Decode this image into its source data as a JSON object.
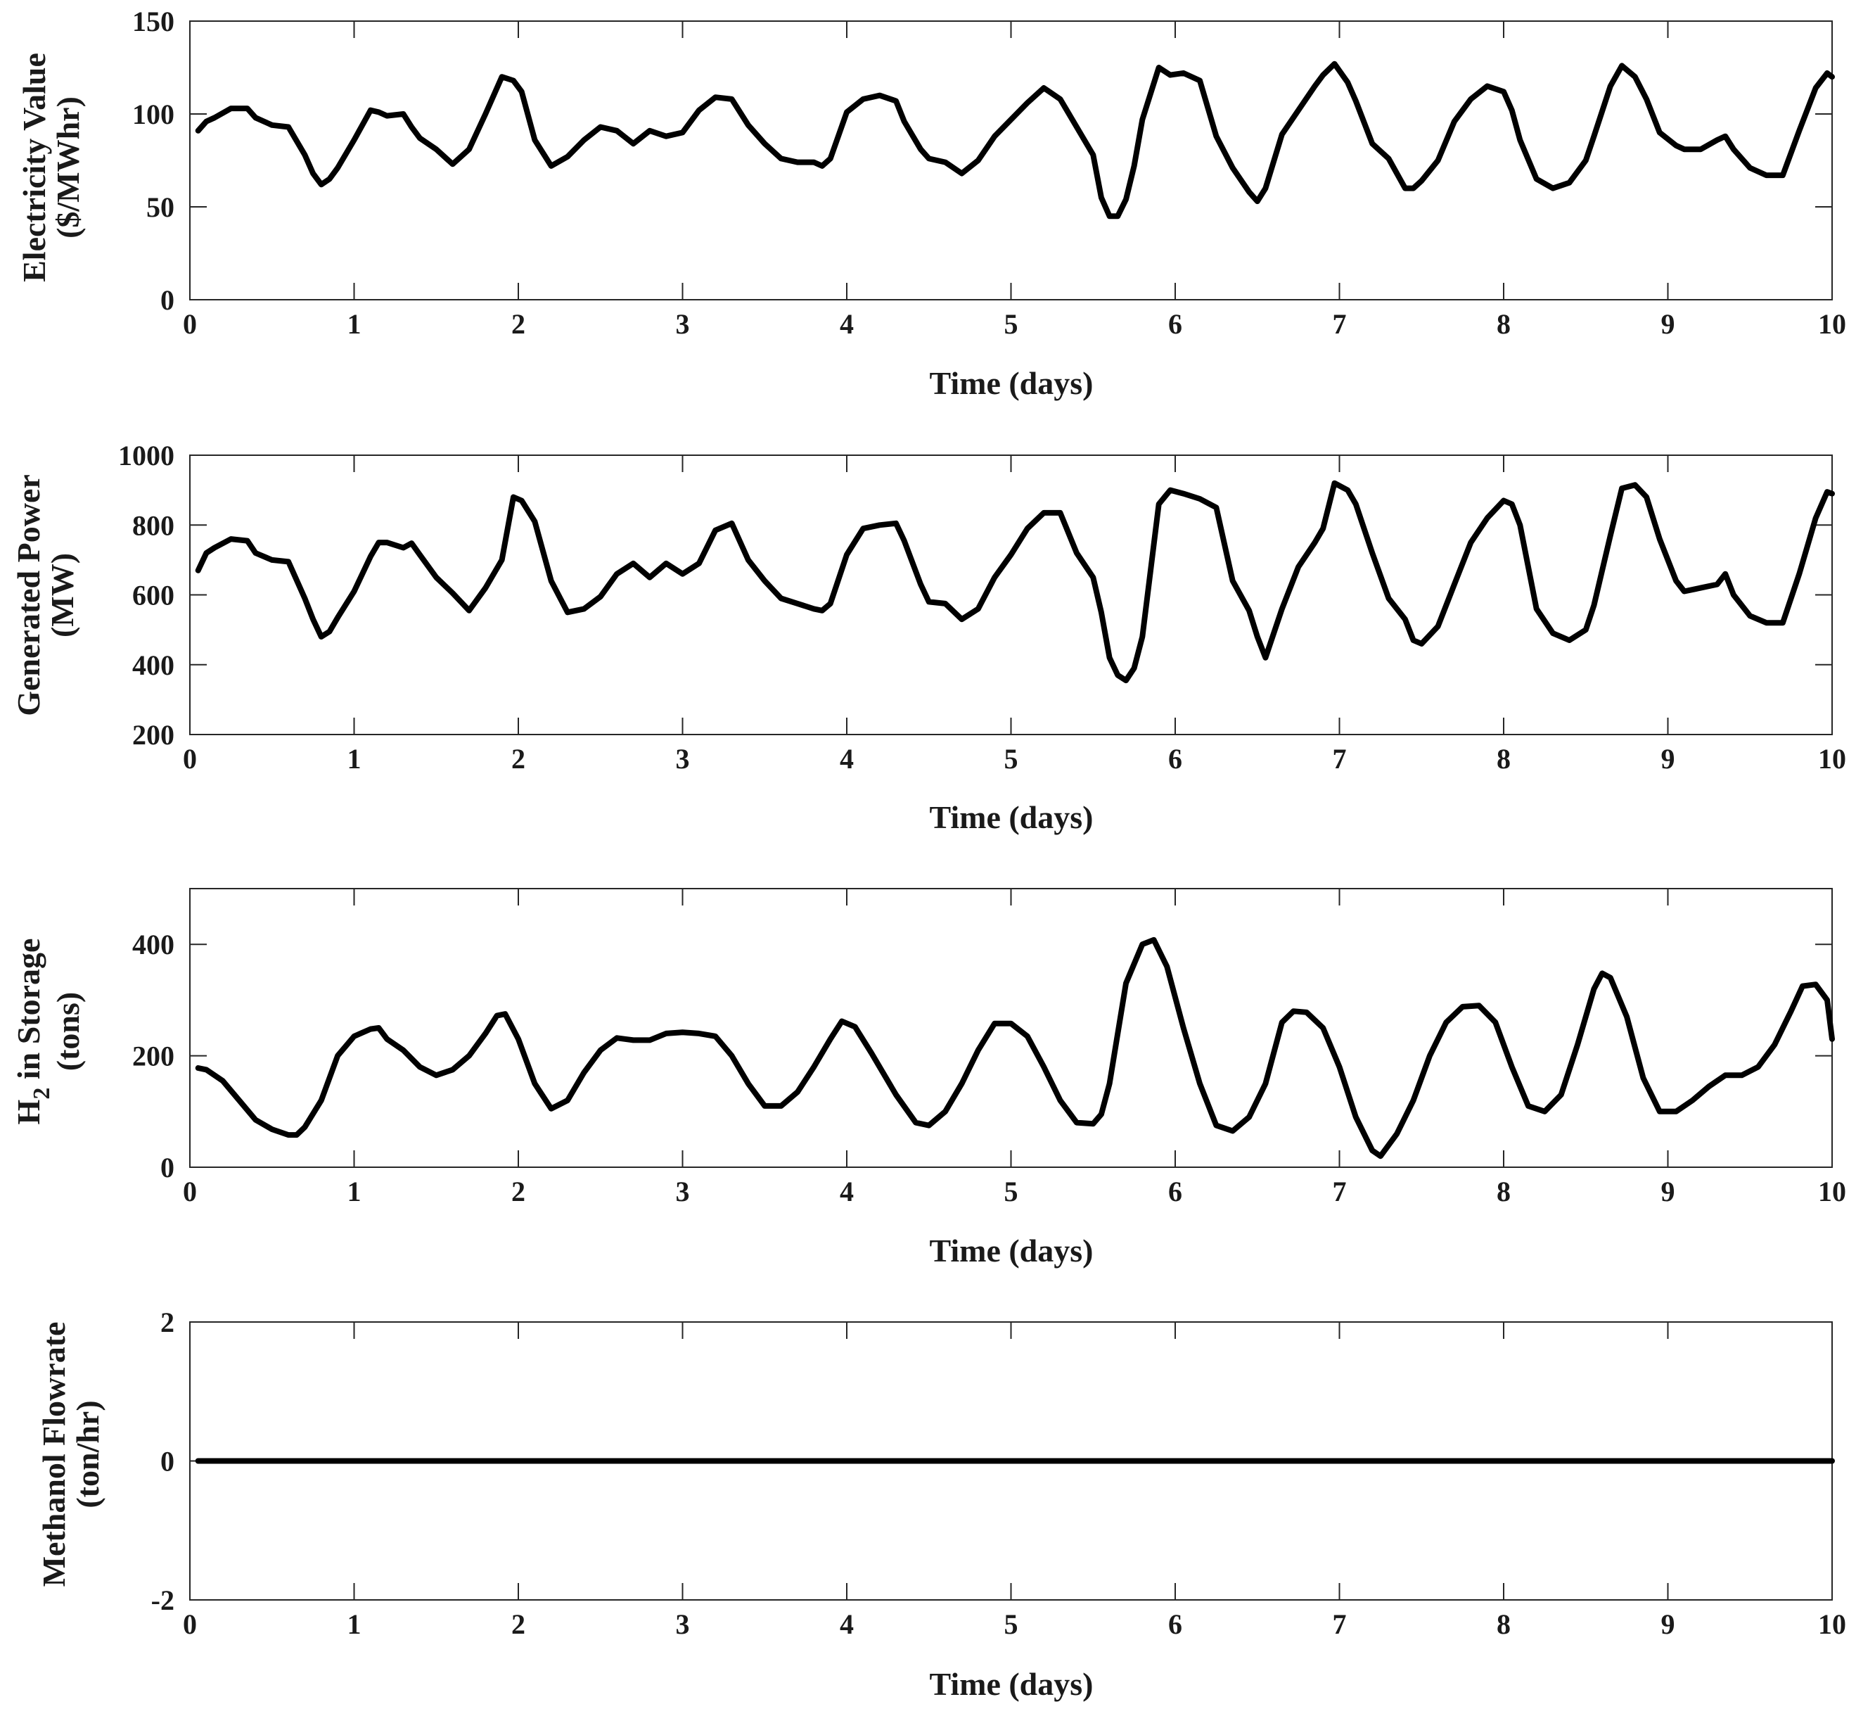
{
  "chart_data": [
    {
      "type": "line",
      "xlabel": "Time (days)",
      "ylabel_lines": [
        "Electricity Value",
        "($/MWhr)"
      ],
      "xlim": [
        0,
        10
      ],
      "ylim": [
        0,
        150
      ],
      "xticks": [
        "0",
        "1",
        "2",
        "3",
        "4",
        "5",
        "6",
        "7",
        "8",
        "9",
        "10"
      ],
      "yticks": [
        "0",
        "50",
        "100",
        "150"
      ],
      "grid": false,
      "series": [
        {
          "color": "#000000",
          "x": [
            0.05,
            0.1,
            0.15,
            0.25,
            0.35,
            0.4,
            0.5,
            0.6,
            0.7,
            0.75,
            0.8,
            0.85,
            0.9,
            1.0,
            1.1,
            1.15,
            1.2,
            1.3,
            1.35,
            1.4,
            1.5,
            1.6,
            1.7,
            1.8,
            1.9,
            1.97,
            2.02,
            2.1,
            2.2,
            2.3,
            2.4,
            2.5,
            2.6,
            2.7,
            2.8,
            2.9,
            3.0,
            3.1,
            3.2,
            3.3,
            3.4,
            3.5,
            3.6,
            3.7,
            3.8,
            3.85,
            3.9,
            4.0,
            4.1,
            4.2,
            4.3,
            4.35,
            4.45,
            4.5,
            4.6,
            4.7,
            4.8,
            4.9,
            5.0,
            5.1,
            5.2,
            5.3,
            5.4,
            5.5,
            5.55,
            5.6,
            5.65,
            5.7,
            5.75,
            5.8,
            5.9,
            5.97,
            6.05,
            6.15,
            6.25,
            6.35,
            6.45,
            6.5,
            6.55,
            6.65,
            6.75,
            6.85,
            6.9,
            6.97,
            7.05,
            7.1,
            7.2,
            7.3,
            7.4,
            7.45,
            7.5,
            7.6,
            7.7,
            7.8,
            7.9,
            8.0,
            8.05,
            8.1,
            8.2,
            8.3,
            8.4,
            8.5,
            8.55,
            8.65,
            8.72,
            8.8,
            8.87,
            8.95,
            9.05,
            9.1,
            9.2,
            9.3,
            9.35,
            9.4,
            9.5,
            9.6,
            9.7,
            9.8,
            9.9,
            9.97,
            10.0
          ],
          "y": [
            91,
            96,
            98,
            103,
            103,
            98,
            94,
            93,
            78,
            68,
            62,
            65,
            71,
            86,
            102,
            101,
            99,
            100,
            93,
            87,
            81,
            73,
            81,
            100,
            120,
            118,
            112,
            86,
            72,
            77,
            86,
            93,
            91,
            84,
            91,
            88,
            90,
            102,
            109,
            108,
            94,
            84,
            76,
            74,
            74,
            72,
            76,
            101,
            108,
            110,
            107,
            96,
            81,
            76,
            74,
            68,
            75,
            88,
            97,
            106,
            114,
            108,
            93,
            78,
            55,
            45,
            45,
            54,
            72,
            97,
            125,
            121,
            122,
            118,
            88,
            71,
            58,
            53,
            60,
            89,
            102,
            115,
            121,
            127,
            117,
            107,
            84,
            76,
            60,
            60,
            64,
            75,
            96,
            108,
            115,
            112,
            102,
            86,
            65,
            60,
            63,
            75,
            88,
            115,
            126,
            120,
            108,
            90,
            83,
            81,
            81,
            86,
            88,
            81,
            71,
            67,
            67,
            91,
            114,
            122,
            120
          ]
        }
      ]
    },
    {
      "type": "line",
      "xlabel": "Time (days)",
      "ylabel_lines": [
        "Generated Power",
        "(MW)"
      ],
      "xlim": [
        0,
        10
      ],
      "ylim": [
        200,
        1000
      ],
      "xticks": [
        "0",
        "1",
        "2",
        "3",
        "4",
        "5",
        "6",
        "7",
        "8",
        "9",
        "10"
      ],
      "yticks": [
        "200",
        "400",
        "600",
        "800",
        "1000"
      ],
      "grid": false,
      "series": [
        {
          "color": "#000000",
          "x": [
            0.05,
            0.1,
            0.15,
            0.25,
            0.35,
            0.4,
            0.5,
            0.6,
            0.7,
            0.75,
            0.8,
            0.85,
            0.9,
            1.0,
            1.1,
            1.15,
            1.2,
            1.3,
            1.35,
            1.4,
            1.5,
            1.6,
            1.7,
            1.8,
            1.9,
            1.97,
            2.02,
            2.1,
            2.2,
            2.3,
            2.4,
            2.5,
            2.6,
            2.7,
            2.8,
            2.9,
            3.0,
            3.1,
            3.2,
            3.3,
            3.4,
            3.5,
            3.6,
            3.7,
            3.8,
            3.85,
            3.9,
            4.0,
            4.1,
            4.2,
            4.3,
            4.35,
            4.45,
            4.5,
            4.6,
            4.7,
            4.8,
            4.9,
            5.0,
            5.1,
            5.2,
            5.3,
            5.4,
            5.5,
            5.55,
            5.6,
            5.65,
            5.7,
            5.75,
            5.8,
            5.9,
            5.97,
            6.05,
            6.15,
            6.25,
            6.35,
            6.45,
            6.5,
            6.55,
            6.65,
            6.75,
            6.85,
            6.9,
            6.97,
            7.05,
            7.1,
            7.2,
            7.3,
            7.4,
            7.45,
            7.5,
            7.6,
            7.7,
            7.8,
            7.9,
            8.0,
            8.05,
            8.1,
            8.2,
            8.3,
            8.4,
            8.5,
            8.55,
            8.65,
            8.72,
            8.8,
            8.87,
            8.95,
            9.05,
            9.1,
            9.2,
            9.3,
            9.35,
            9.4,
            9.5,
            9.6,
            9.7,
            9.8,
            9.9,
            9.97,
            10.0
          ],
          "y": [
            670,
            720,
            735,
            760,
            755,
            720,
            700,
            695,
            590,
            530,
            480,
            495,
            535,
            610,
            710,
            750,
            750,
            735,
            748,
            715,
            650,
            605,
            555,
            620,
            700,
            880,
            870,
            810,
            640,
            550,
            560,
            595,
            660,
            690,
            650,
            690,
            660,
            690,
            785,
            805,
            700,
            640,
            590,
            575,
            560,
            555,
            575,
            715,
            790,
            800,
            805,
            755,
            630,
            580,
            575,
            530,
            560,
            650,
            715,
            790,
            835,
            835,
            720,
            650,
            550,
            420,
            370,
            355,
            390,
            480,
            860,
            900,
            890,
            875,
            850,
            640,
            555,
            480,
            420,
            560,
            680,
            750,
            790,
            920,
            900,
            860,
            720,
            590,
            530,
            470,
            460,
            510,
            630,
            750,
            820,
            870,
            860,
            800,
            560,
            490,
            470,
            500,
            570,
            770,
            905,
            915,
            880,
            760,
            640,
            610,
            620,
            630,
            660,
            600,
            540,
            520,
            520,
            660,
            820,
            895,
            890
          ]
        }
      ]
    },
    {
      "type": "line",
      "xlabel": "Time (days)",
      "ylabel_lines": [
        "H2 in Storage",
        "(tons)"
      ],
      "ylabel_main": "H",
      "ylabel_sub": "2",
      "ylabel_rest": " in Storage",
      "ylabel_line2": "(tons)",
      "xlim": [
        0,
        10
      ],
      "ylim": [
        0,
        500
      ],
      "xticks": [
        "0",
        "1",
        "2",
        "3",
        "4",
        "5",
        "6",
        "7",
        "8",
        "9",
        "10"
      ],
      "yticks": [
        "0",
        "200",
        "400"
      ],
      "grid": false,
      "series": [
        {
          "color": "#000000",
          "x": [
            0.05,
            0.1,
            0.2,
            0.3,
            0.4,
            0.5,
            0.6,
            0.65,
            0.7,
            0.8,
            0.9,
            1.0,
            1.1,
            1.15,
            1.2,
            1.3,
            1.4,
            1.5,
            1.6,
            1.7,
            1.8,
            1.87,
            1.92,
            2.0,
            2.1,
            2.2,
            2.3,
            2.4,
            2.5,
            2.6,
            2.7,
            2.8,
            2.9,
            3.0,
            3.1,
            3.2,
            3.3,
            3.4,
            3.5,
            3.6,
            3.7,
            3.8,
            3.9,
            3.97,
            4.05,
            4.15,
            4.3,
            4.42,
            4.5,
            4.6,
            4.7,
            4.8,
            4.9,
            5.0,
            5.1,
            5.2,
            5.3,
            5.4,
            5.5,
            5.55,
            5.6,
            5.7,
            5.8,
            5.87,
            5.95,
            6.05,
            6.15,
            6.25,
            6.35,
            6.45,
            6.55,
            6.65,
            6.72,
            6.8,
            6.9,
            7.0,
            7.1,
            7.2,
            7.25,
            7.35,
            7.45,
            7.55,
            7.65,
            7.75,
            7.85,
            7.95,
            8.05,
            8.15,
            8.25,
            8.35,
            8.45,
            8.55,
            8.6,
            8.65,
            8.75,
            8.85,
            8.95,
            9.05,
            9.15,
            9.25,
            9.35,
            9.45,
            9.55,
            9.65,
            9.75,
            9.82,
            9.9,
            9.97,
            10.0
          ],
          "y": [
            178,
            175,
            155,
            120,
            85,
            68,
            58,
            58,
            72,
            120,
            200,
            235,
            248,
            250,
            230,
            210,
            180,
            165,
            175,
            200,
            240,
            272,
            275,
            230,
            150,
            105,
            120,
            170,
            210,
            232,
            228,
            228,
            240,
            242,
            240,
            235,
            200,
            150,
            110,
            110,
            135,
            180,
            230,
            262,
            252,
            205,
            130,
            80,
            75,
            100,
            150,
            210,
            258,
            258,
            235,
            180,
            120,
            80,
            78,
            95,
            150,
            330,
            400,
            408,
            360,
            250,
            150,
            75,
            65,
            90,
            150,
            260,
            280,
            278,
            250,
            180,
            90,
            30,
            20,
            60,
            120,
            200,
            260,
            288,
            290,
            260,
            180,
            110,
            100,
            130,
            220,
            320,
            348,
            340,
            270,
            160,
            100,
            100,
            120,
            145,
            165,
            165,
            180,
            220,
            280,
            325,
            328,
            300,
            230
          ]
        }
      ]
    },
    {
      "type": "line",
      "xlabel": "Time (days)",
      "ylabel_lines": [
        "Methanol Flowrate",
        "(ton/hr)"
      ],
      "xlim": [
        0,
        10
      ],
      "ylim": [
        -2,
        2
      ],
      "xticks": [
        "0",
        "1",
        "2",
        "3",
        "4",
        "5",
        "6",
        "7",
        "8",
        "9",
        "10"
      ],
      "yticks": [
        "-2",
        "0",
        "2"
      ],
      "grid": false,
      "series": [
        {
          "color": "#000000",
          "x": [
            0.05,
            10.0
          ],
          "y": [
            0,
            0
          ]
        }
      ]
    }
  ]
}
